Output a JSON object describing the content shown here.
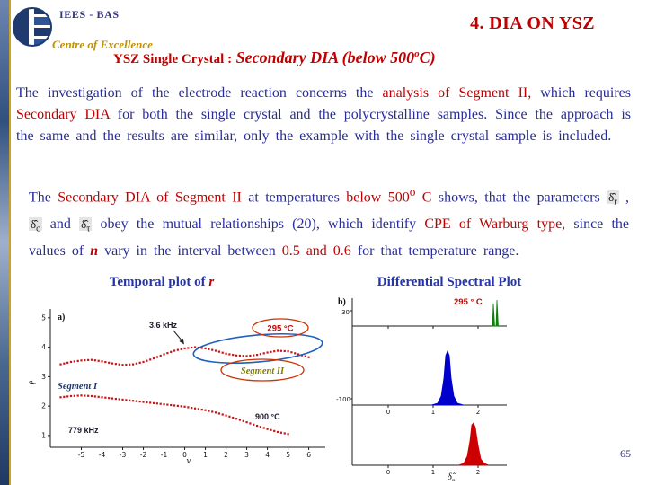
{
  "colors": {
    "body_blue": "#272C9B",
    "accent_red": "#C00000",
    "gold": "#BF9000",
    "org_navy": "#33337F",
    "olive_segment": "#7F7F00",
    "chart_point_red": "#C81414",
    "peak_blue": "#0000CC",
    "peak_red": "#CC0000",
    "peak_green": "#0F7F0F"
  },
  "header": {
    "org": "IEES - BAS",
    "org_sub": "Centre of Excellence",
    "title": "4.  DIA ON YSZ",
    "subtitle_prefix": "YSZ Single Crystal :",
    "subtitle_main": " Secondary DIA (below 500",
    "subtitle_sup": "o",
    "subtitle_suffix": "C)"
  },
  "body": {
    "p1": {
      "s1": "The investigation of the electrode reaction concerns the ",
      "s2": "analysis of Segment II,",
      "s3": " which requires ",
      "s4": "Secondary DIA",
      "s5": " for both the single crystal and the polycrystalline samples. Since the approach is the same and the results are similar, only the example with the single crystal sample is included."
    },
    "p2": {
      "s1": "The ",
      "s2": "Secondary DIA of Segment II",
      "s3": " at temperatures ",
      "s4": "below 500",
      "s4sup": "o",
      "s4b": " C",
      "s5": " shows, that the parameters ",
      "sym1": {
        "base": "δ̂",
        "sub": "r"
      },
      "s6": " , ",
      "sym2": {
        "base": "δ̂",
        "sub": "c"
      },
      "s7": " and ",
      "sym3": {
        "base": "δ̂",
        "sub": "τ"
      },
      "s8": " obey the mutual relationships (20), which identify ",
      "s9": "CPE of Warburg type,",
      "s10": " since the values of ",
      "s11": "n",
      "s12": " vary in the interval between ",
      "s13": "0.5 and 0.6",
      "s14": " for that temperature range."
    }
  },
  "figures": {
    "left_title_prefix": "Temporal plot of ",
    "left_title_var": "r",
    "right_title": "Differential Spectral Plot"
  },
  "footer": {
    "page": "65"
  },
  "chart_data": [
    {
      "type": "scatter",
      "title": "Temporal plot of r",
      "xlabel": "ν",
      "ylabel": "r̂",
      "xlim": [
        -6.5,
        6.8
      ],
      "ylim": [
        0.6,
        5.3
      ],
      "x_ticks": [
        -5,
        -4,
        -3,
        -2,
        -1,
        0,
        1,
        2,
        3,
        4,
        5,
        6
      ],
      "y_ticks": [
        1,
        2,
        3,
        4,
        5
      ],
      "grid": false,
      "point_color": "#C81414",
      "series": [
        {
          "name": "upper-branch-segment-II",
          "x": [
            -6,
            -5.5,
            -5,
            -4.5,
            -4,
            -3.5,
            -3,
            -2.5,
            -2,
            -1.5,
            -1,
            -0.5,
            0,
            0.5,
            1,
            1.5,
            2,
            2.5,
            3,
            3.5,
            4,
            4.5,
            5,
            5.5,
            6
          ],
          "y": [
            3.42,
            3.5,
            3.55,
            3.57,
            3.52,
            3.45,
            3.4,
            3.42,
            3.5,
            3.62,
            3.76,
            3.88,
            3.96,
            4.0,
            3.96,
            3.88,
            3.78,
            3.72,
            3.7,
            3.74,
            3.82,
            3.88,
            3.86,
            3.76,
            3.66
          ]
        },
        {
          "name": "lower-branch-segment-I",
          "x": [
            -6,
            -5.5,
            -5,
            -4.5,
            -4,
            -3.5,
            -3,
            -2.5,
            -2,
            -1.5,
            -1,
            -0.5,
            0,
            0.5,
            1,
            1.5,
            2,
            2.5,
            3,
            3.5,
            4,
            4.5,
            5
          ],
          "y": [
            2.3,
            2.34,
            2.36,
            2.34,
            2.3,
            2.26,
            2.22,
            2.18,
            2.14,
            2.1,
            2.06,
            2.02,
            1.98,
            1.92,
            1.86,
            1.78,
            1.68,
            1.57,
            1.45,
            1.33,
            1.22,
            1.12,
            1.05
          ]
        }
      ],
      "annotations": {
        "panel": "a)",
        "freq_top": "3.6 kHz",
        "temp_top": "295 °C",
        "segment_1": "Segment I",
        "segment_2": "Segment II",
        "temp_bottom": "900 °C",
        "freq_bottom": "779 kHz"
      }
    },
    {
      "type": "line",
      "title": "Differential Spectral Plot",
      "xlabel_base": "δ̂",
      "xlabel_sub": "p",
      "x_ticks": [
        0,
        1,
        2
      ],
      "y_tick_labels": [
        "30",
        "-100"
      ],
      "annotations": {
        "panel": "b)",
        "temp": "295 ° C"
      },
      "peaks": [
        {
          "name": "green-peaks",
          "color": "#0F7F0F",
          "points": [
            [
              176,
              37
            ],
            [
              177,
              12
            ],
            [
              178.5,
              37
            ],
            [
              180,
              37
            ],
            [
              181,
              8
            ],
            [
              182.5,
              37
            ]
          ]
        },
        {
          "name": "blue-peak",
          "color": "#0000CC",
          "points": [
            [
              108,
              125
            ],
            [
              115,
              123
            ],
            [
              119,
              115
            ],
            [
              122,
              95
            ],
            [
              124,
              70
            ],
            [
              126,
              65
            ],
            [
              128,
              70
            ],
            [
              130,
              95
            ],
            [
              133,
              115
            ],
            [
              137,
              123
            ],
            [
              144,
              125
            ]
          ]
        },
        {
          "name": "red-peak",
          "color": "#CC0000",
          "points": [
            [
              138,
              192
            ],
            [
              144,
              190
            ],
            [
              148,
              182
            ],
            [
              151,
              165
            ],
            [
              153,
              147
            ],
            [
              155,
              145
            ],
            [
              157,
              150
            ],
            [
              160,
              170
            ],
            [
              163,
              185
            ],
            [
              167,
              190
            ],
            [
              172,
              192
            ]
          ]
        }
      ]
    }
  ]
}
